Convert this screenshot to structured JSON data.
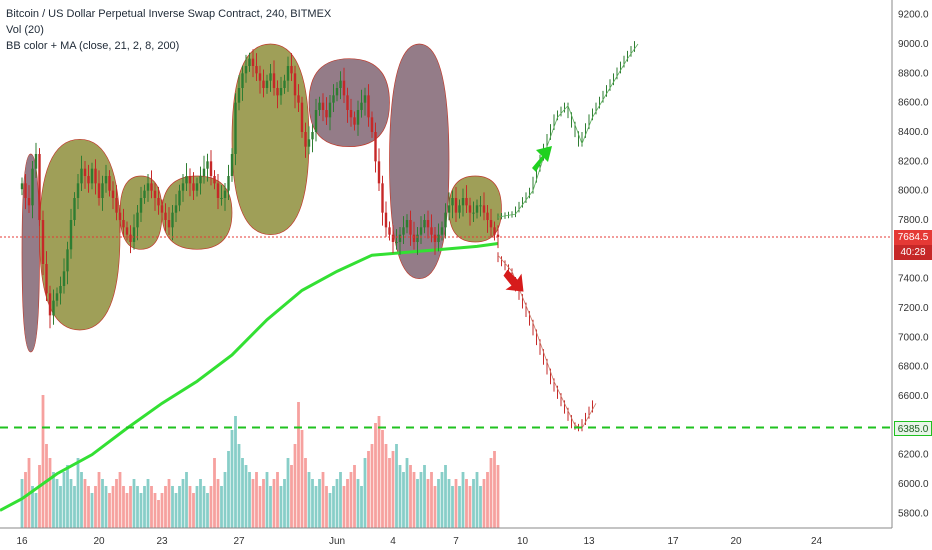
{
  "legend": {
    "title": "Bitcoin / US Dollar Perpetual Inverse Swap Contract, 240, BITMEX",
    "vol": "Vol (20)",
    "bb": "BB color + MA (close, 21, 2, 8, 200)"
  },
  "tags": {
    "last_price": "7684.5",
    "countdown": "40:28",
    "target": "6385.0"
  },
  "colors": {
    "up": "#2e7d32",
    "down": "#c62828",
    "ma200": "#33e033",
    "bb_bull": "#7a7a18",
    "bb_bear": "#6b4a5a",
    "dashed_target": "#1fc21f",
    "dotted_last": "#e53935"
  },
  "chart_data": {
    "type": "candlestick",
    "title": "Bitcoin / US Dollar Perpetual Inverse Swap Contract, 240, BITMEX",
    "ylim": [
      5700,
      9300
    ],
    "y_ticks": [
      5800,
      6000,
      6200,
      6400,
      6600,
      6800,
      7000,
      7200,
      7400,
      7600,
      7800,
      8000,
      8200,
      8400,
      8600,
      8800,
      9000,
      9200
    ],
    "x_ticks": [
      "16",
      "20",
      "23",
      "27",
      "Jun",
      "4",
      "7",
      "10",
      "13",
      "17",
      "20",
      "24"
    ],
    "x_tick_index": [
      0,
      22,
      40,
      62,
      90,
      106,
      124,
      143,
      162,
      186,
      204,
      227
    ],
    "last_price": 7684.5,
    "target_price": 6385.0,
    "ma200": [
      {
        "i": 0,
        "v": 5900
      },
      {
        "i": 10,
        "v": 6070
      },
      {
        "i": 20,
        "v": 6200
      },
      {
        "i": 30,
        "v": 6380
      },
      {
        "i": 40,
        "v": 6550
      },
      {
        "i": 50,
        "v": 6700
      },
      {
        "i": 60,
        "v": 6880
      },
      {
        "i": 70,
        "v": 7120
      },
      {
        "i": 80,
        "v": 7320
      },
      {
        "i": 90,
        "v": 7450
      },
      {
        "i": 100,
        "v": 7560
      },
      {
        "i": 110,
        "v": 7580
      },
      {
        "i": 120,
        "v": 7600
      },
      {
        "i": 130,
        "v": 7620
      },
      {
        "i": 136,
        "v": 7640
      }
    ],
    "bb_zones": [
      {
        "from": 0,
        "to": 5,
        "color": "bear",
        "upper": 8250,
        "lower": 6900
      },
      {
        "from": 5,
        "to": 28,
        "color": "bull",
        "upper": 8350,
        "lower": 7050
      },
      {
        "from": 28,
        "to": 40,
        "color": "bull",
        "upper": 8100,
        "lower": 7600
      },
      {
        "from": 40,
        "to": 60,
        "color": "bull",
        "upper": 8100,
        "lower": 7600
      },
      {
        "from": 60,
        "to": 82,
        "color": "bull",
        "upper": 9000,
        "lower": 7700
      },
      {
        "from": 82,
        "to": 105,
        "color": "bear",
        "upper": 8900,
        "lower": 8300
      },
      {
        "from": 105,
        "to": 122,
        "color": "bear",
        "upper": 9000,
        "lower": 7400
      },
      {
        "from": 122,
        "to": 137,
        "color": "bull",
        "upper": 8100,
        "lower": 7650
      }
    ],
    "candles_close": [
      8050,
      7950,
      7900,
      8150,
      8250,
      7800,
      7500,
      7300,
      7150,
      7250,
      7300,
      7350,
      7450,
      7600,
      7800,
      7950,
      8050,
      8150,
      8100,
      8050,
      8150,
      8050,
      7950,
      8050,
      8100,
      8000,
      7950,
      7850,
      7800,
      7750,
      7700,
      7650,
      7750,
      7850,
      7950,
      8000,
      8050,
      8000,
      7950,
      7900,
      7850,
      7800,
      7750,
      7850,
      7900,
      8000,
      8050,
      8100,
      8050,
      8000,
      8050,
      8100,
      8150,
      8200,
      8100,
      8050,
      7950,
      7950,
      8000,
      8100,
      8250,
      8600,
      8700,
      8800,
      8850,
      8900,
      8850,
      8800,
      8750,
      8700,
      8750,
      8800,
      8700,
      8650,
      8700,
      8750,
      8850,
      8800,
      8650,
      8600,
      8400,
      8300,
      8350,
      8400,
      8550,
      8600,
      8550,
      8500,
      8600,
      8650,
      8700,
      8750,
      8650,
      8550,
      8500,
      8450,
      8550,
      8600,
      8650,
      8500,
      8400,
      8200,
      8050,
      7850,
      7750,
      7700,
      7650,
      7650,
      7700,
      7750,
      7800,
      7700,
      7650,
      7700,
      7750,
      7800,
      7750,
      7700,
      7650,
      7700,
      7750,
      7850,
      7900,
      7950,
      7850,
      7900,
      7950,
      7900,
      7850,
      7850,
      7900,
      7900,
      7850,
      7800,
      7750,
      7700,
      7684
    ],
    "volume": [
      0.35,
      0.4,
      0.5,
      0.3,
      0.25,
      0.45,
      0.95,
      0.6,
      0.5,
      0.4,
      0.35,
      0.3,
      0.4,
      0.45,
      0.35,
      0.3,
      0.5,
      0.4,
      0.35,
      0.3,
      0.25,
      0.3,
      0.4,
      0.35,
      0.3,
      0.25,
      0.3,
      0.35,
      0.4,
      0.3,
      0.25,
      0.3,
      0.35,
      0.3,
      0.25,
      0.3,
      0.35,
      0.3,
      0.25,
      0.2,
      0.25,
      0.3,
      0.35,
      0.3,
      0.25,
      0.3,
      0.35,
      0.4,
      0.3,
      0.25,
      0.3,
      0.35,
      0.3,
      0.25,
      0.3,
      0.5,
      0.35,
      0.3,
      0.4,
      0.55,
      0.7,
      0.8,
      0.6,
      0.5,
      0.45,
      0.4,
      0.35,
      0.4,
      0.3,
      0.35,
      0.4,
      0.3,
      0.35,
      0.4,
      0.3,
      0.35,
      0.5,
      0.45,
      0.6,
      0.9,
      0.7,
      0.5,
      0.4,
      0.35,
      0.3,
      0.35,
      0.4,
      0.3,
      0.25,
      0.3,
      0.35,
      0.4,
      0.3,
      0.35,
      0.4,
      0.45,
      0.35,
      0.3,
      0.5,
      0.55,
      0.6,
      0.75,
      0.8,
      0.7,
      0.6,
      0.5,
      0.55,
      0.6,
      0.45,
      0.4,
      0.5,
      0.45,
      0.4,
      0.35,
      0.4,
      0.45,
      0.35,
      0.4,
      0.3,
      0.35,
      0.4,
      0.45,
      0.35,
      0.3,
      0.35,
      0.3,
      0.4,
      0.35,
      0.3,
      0.35,
      0.4,
      0.3,
      0.35,
      0.4,
      0.5,
      0.55,
      0.45
    ],
    "projection_up": [
      {
        "i": 136,
        "v": 7820
      },
      {
        "i": 141,
        "v": 7840
      },
      {
        "i": 146,
        "v": 8000
      },
      {
        "i": 150,
        "v": 8300
      },
      {
        "i": 153,
        "v": 8500
      },
      {
        "i": 156,
        "v": 8580
      },
      {
        "i": 160,
        "v": 8320
      },
      {
        "i": 163,
        "v": 8500
      },
      {
        "i": 168,
        "v": 8700
      },
      {
        "i": 173,
        "v": 8900
      },
      {
        "i": 176,
        "v": 9000
      }
    ],
    "projection_down": [
      {
        "i": 136,
        "v": 7560
      },
      {
        "i": 140,
        "v": 7450
      },
      {
        "i": 146,
        "v": 7100
      },
      {
        "i": 152,
        "v": 6700
      },
      {
        "i": 158,
        "v": 6400
      },
      {
        "i": 160,
        "v": 6380
      },
      {
        "i": 164,
        "v": 6550
      }
    ]
  }
}
